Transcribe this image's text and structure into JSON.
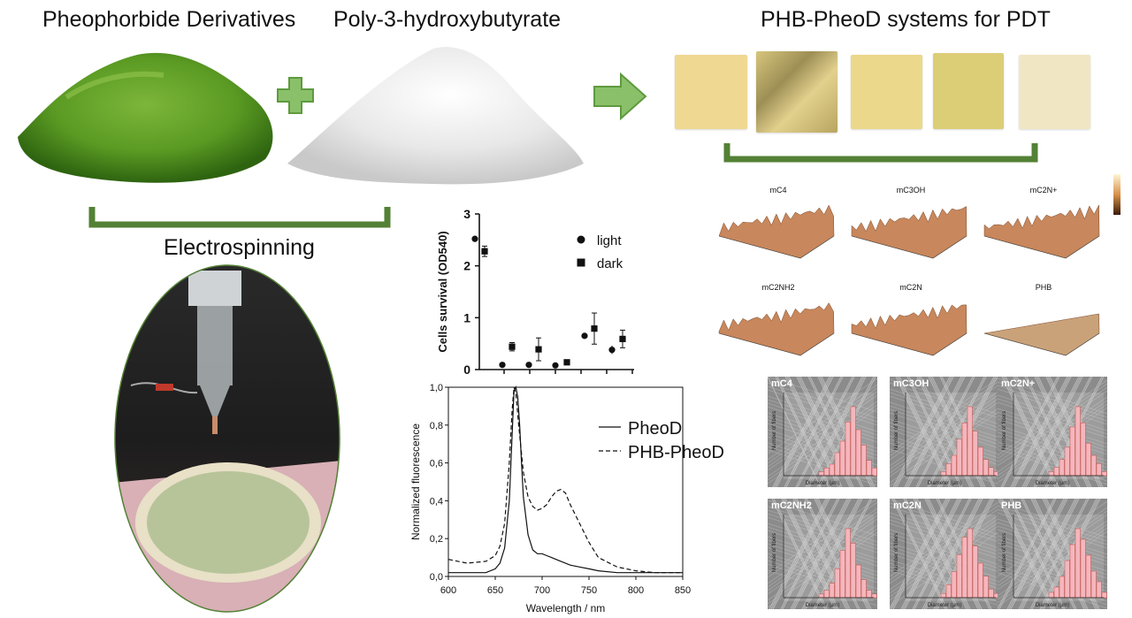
{
  "titles": {
    "pheod": "Pheophorbide Derivatives",
    "phb": "Poly-3-hydroxybutyrate",
    "systems": "PHB-PheoD systems for PDT",
    "electrospinning": "Electrospinning"
  },
  "afm": {
    "labels": [
      "mC4",
      "mC3OH",
      "mC2N+",
      "mC2NH2",
      "mC2N",
      "PHB"
    ]
  },
  "sem": {
    "labels": [
      "mC4",
      "mC3OH",
      "mC2N+",
      "mC2NH2",
      "mC2N",
      "PHB"
    ],
    "xlabel": "Diameter (µm)",
    "ylabel": "Number of fibers"
  },
  "chart_data": [
    {
      "type": "scatter",
      "ylabel": "Cells survival (OD540)",
      "ylim": [
        0,
        3
      ],
      "yticks": [
        "0",
        "1",
        "2",
        "3"
      ],
      "legend_position": "top-right",
      "series": [
        {
          "name": "light",
          "marker": "circle",
          "values": [
            2.52,
            0.09,
            0.09,
            0.08,
            0.65,
            0.38
          ]
        },
        {
          "name": "dark",
          "marker": "square",
          "values": [
            2.28,
            0.44,
            0.39,
            0.14,
            0.79,
            0.59
          ],
          "errors": [
            0.1,
            0.08,
            0.22,
            0.0,
            0.3,
            0.17
          ]
        }
      ],
      "light_errors": [
        0.06,
        0.0,
        0.0,
        0.0,
        0.0,
        0.08
      ]
    },
    {
      "type": "line",
      "xlabel": "Wavelength / nm",
      "ylabel": "Normalized fluorescence",
      "xlim": [
        600,
        850
      ],
      "ylim": [
        0,
        1.0
      ],
      "xticks": [
        "600",
        "650",
        "700",
        "750",
        "800",
        "850"
      ],
      "yticks": [
        "0,0",
        "0,2",
        "0,4",
        "0,6",
        "0,8",
        "1,0"
      ],
      "legend_position": "top-right",
      "series": [
        {
          "name": "PheoD",
          "style": "solid",
          "x": [
            600,
            620,
            640,
            650,
            655,
            660,
            665,
            668,
            670,
            672,
            674,
            676,
            678,
            680,
            685,
            690,
            695,
            700,
            705,
            710,
            720,
            730,
            740,
            750,
            760,
            780,
            800,
            820,
            850
          ],
          "y": [
            0.02,
            0.02,
            0.02,
            0.04,
            0.07,
            0.15,
            0.4,
            0.75,
            0.98,
            1.0,
            0.95,
            0.8,
            0.6,
            0.42,
            0.22,
            0.14,
            0.12,
            0.12,
            0.11,
            0.1,
            0.08,
            0.06,
            0.05,
            0.04,
            0.03,
            0.02,
            0.02,
            0.02,
            0.02
          ]
        },
        {
          "name": "PHB-PheoD",
          "style": "dashed",
          "x": [
            600,
            620,
            640,
            650,
            655,
            660,
            665,
            668,
            670,
            672,
            675,
            680,
            685,
            690,
            695,
            700,
            705,
            710,
            715,
            720,
            725,
            730,
            740,
            750,
            760,
            780,
            800,
            820,
            850
          ],
          "y": [
            0.09,
            0.07,
            0.08,
            0.11,
            0.16,
            0.28,
            0.6,
            0.88,
            1.0,
            0.97,
            0.8,
            0.55,
            0.42,
            0.37,
            0.35,
            0.36,
            0.38,
            0.42,
            0.45,
            0.46,
            0.44,
            0.38,
            0.28,
            0.18,
            0.1,
            0.05,
            0.03,
            0.02,
            0.02
          ]
        }
      ]
    }
  ]
}
